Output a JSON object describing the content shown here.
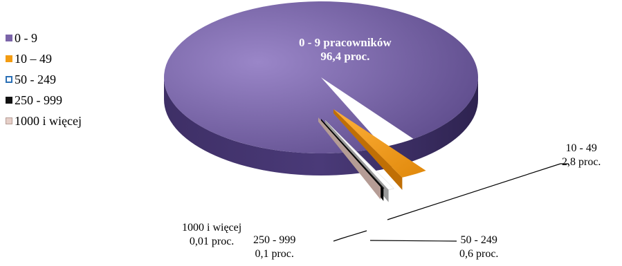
{
  "chart_data": {
    "type": "pie",
    "categories": [
      "0 - 9",
      "10 – 49",
      "50 - 249",
      "250 - 999",
      "1000 i więcej"
    ],
    "values": [
      96.4,
      2.8,
      0.6,
      0.1,
      0.01
    ],
    "colors": [
      "#7b64a8",
      "#f39c12",
      "#ffffff",
      "#111111",
      "#e6cfc8"
    ],
    "legend_position": "left",
    "labels": [
      {
        "name": "0 - 9 pracowników",
        "value": "96,4 proc."
      },
      {
        "name": "10 - 49",
        "value": "2,8 proc."
      },
      {
        "name": "50 - 249",
        "value": "0,6 proc."
      },
      {
        "name": "250 - 999",
        "value": "0,1 proc."
      },
      {
        "name": "1000 i więcej",
        "value": "0,01 proc."
      }
    ]
  }
}
